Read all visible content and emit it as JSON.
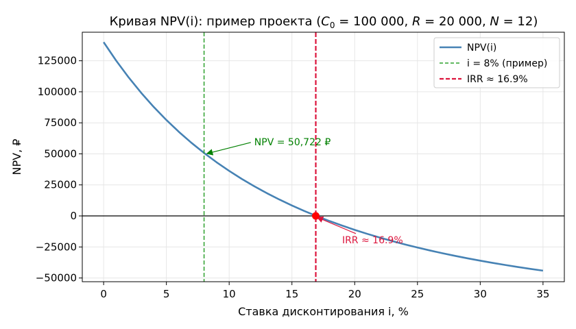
{
  "chart_data": {
    "type": "line",
    "title_main": "Кривая NPV(i): пример проекта (",
    "title_params": [
      {
        "sym": "C",
        "sub": "0",
        "value": "100 000"
      },
      {
        "sym": "R",
        "sub": "",
        "value": "20 000"
      },
      {
        "sym": "N",
        "sub": "",
        "value": "12"
      }
    ],
    "title_close": ")",
    "xlabel": "Ставка дисконтирования i, %",
    "ylabel": "NPV, ₽",
    "xlim": [
      -1.7,
      36.7
    ],
    "ylim": [
      -53000,
      148000
    ],
    "x_ticks": [
      0,
      5,
      10,
      15,
      20,
      25,
      30,
      35
    ],
    "y_ticks": [
      -50000,
      -25000,
      0,
      25000,
      50000,
      75000,
      100000,
      125000
    ],
    "grid": true,
    "project": {
      "C0": 100000,
      "R": 20000,
      "N": 12
    },
    "series": [
      {
        "name": "NPV(i)",
        "color": "#4682b4",
        "x": [
          0,
          1,
          2,
          3,
          4,
          5,
          6,
          7,
          8,
          9,
          10,
          11,
          12,
          13,
          14,
          15,
          16,
          17,
          18,
          19,
          20,
          21,
          22,
          23,
          24,
          25,
          26,
          27,
          28,
          29,
          30,
          31,
          32,
          33,
          34,
          35
        ],
        "y": [
          140000,
          125101,
          111507,
          99081,
          87701,
          77265,
          67677,
          58854,
          50722,
          43215,
          36274,
          29847,
          23887,
          18350,
          13201,
          8405,
          3934,
          -240,
          -4146,
          -7803,
          -11229,
          -14443,
          -17461,
          -20298,
          -22966,
          -25479,
          -27848,
          -30082,
          -32191,
          -34185,
          -36071,
          -37855,
          -39545,
          -41147,
          -42667,
          -44109
        ]
      }
    ],
    "vlines": [
      {
        "name": "i = 8% (пример)",
        "x": 8,
        "color": "#2ca02c"
      },
      {
        "name": "IRR ≈ 16.9%",
        "x": 16.9,
        "color": "#dc143c"
      }
    ],
    "hline": {
      "y": 0,
      "color": "#000000"
    },
    "irr_point": {
      "x": 16.9,
      "y": 0,
      "color": "#ff0000"
    },
    "annotations": [
      {
        "text": "NPV = 50,722 ₽",
        "color": "#008000",
        "target": {
          "x": 8,
          "y": 50722
        },
        "label_at": {
          "x": 12,
          "y": 57000
        }
      },
      {
        "text": "IRR ≈ 16.9%",
        "color": "#dc143c",
        "target": {
          "x": 16.9,
          "y": 0
        },
        "label_at": {
          "x": 19,
          "y": -22000
        }
      }
    ],
    "legend_position": "top-right"
  }
}
